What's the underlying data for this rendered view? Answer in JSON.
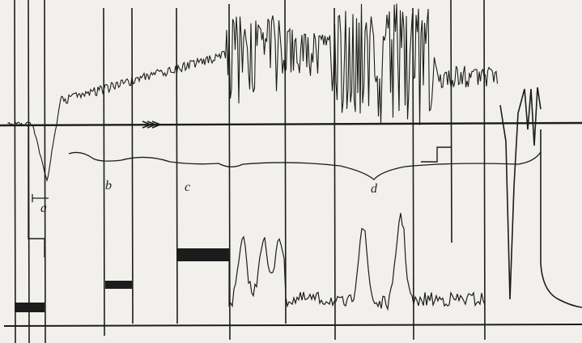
{
  "labels": {
    "a": "a",
    "b": "b",
    "c": "c",
    "d": "d"
  }
}
